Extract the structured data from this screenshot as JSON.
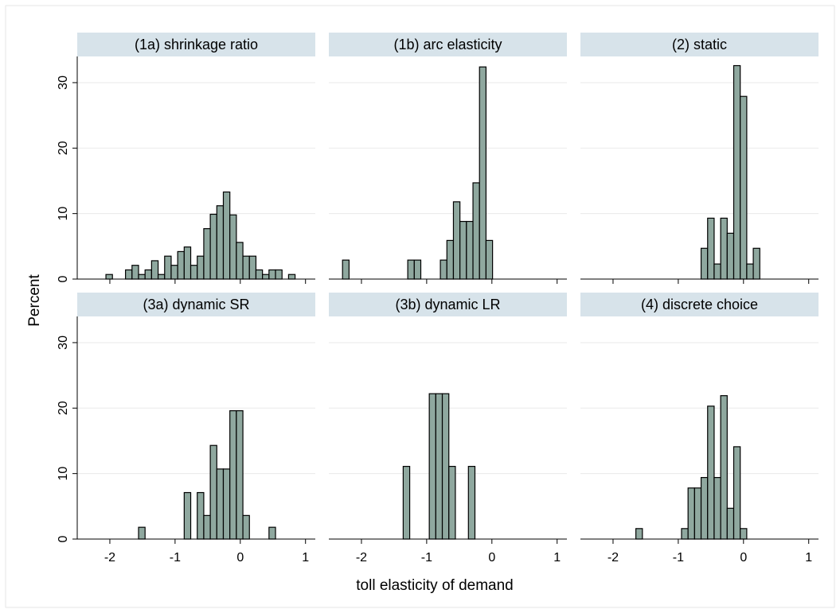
{
  "chart_data": {
    "type": "bar",
    "xlabel": "toll elasticity of demand",
    "ylabel": "Percent",
    "xlim": [
      -2.5,
      1.15
    ],
    "ylim": [
      0,
      34
    ],
    "xticks": [
      -2,
      -1,
      0,
      1
    ],
    "xtick_labels": [
      "-2",
      "-1",
      "0",
      "1"
    ],
    "yticks": [
      0,
      10,
      20,
      30
    ],
    "ytick_labels": [
      "0",
      "10",
      "20",
      "30"
    ],
    "panels": [
      {
        "title": "(1a) shrinkage ratio",
        "bin_width": 0.1,
        "bins": [
          {
            "x0": -2.06,
            "value": 0.7
          },
          {
            "x0": -1.76,
            "value": 1.4
          },
          {
            "x0": -1.66,
            "value": 2.1
          },
          {
            "x0": -1.56,
            "value": 0.7
          },
          {
            "x0": -1.46,
            "value": 1.4
          },
          {
            "x0": -1.36,
            "value": 2.8
          },
          {
            "x0": -1.26,
            "value": 0.7
          },
          {
            "x0": -1.16,
            "value": 3.5
          },
          {
            "x0": -1.06,
            "value": 2.1
          },
          {
            "x0": -0.96,
            "value": 4.2
          },
          {
            "x0": -0.86,
            "value": 4.9
          },
          {
            "x0": -0.76,
            "value": 2.1
          },
          {
            "x0": -0.66,
            "value": 3.5
          },
          {
            "x0": -0.56,
            "value": 7.7
          },
          {
            "x0": -0.46,
            "value": 9.9
          },
          {
            "x0": -0.36,
            "value": 11.2
          },
          {
            "x0": -0.26,
            "value": 13.3
          },
          {
            "x0": -0.16,
            "value": 9.8
          },
          {
            "x0": -0.06,
            "value": 5.6
          },
          {
            "x0": 0.04,
            "value": 3.5
          },
          {
            "x0": 0.14,
            "value": 3.5
          },
          {
            "x0": 0.24,
            "value": 1.4
          },
          {
            "x0": 0.34,
            "value": 0.7
          },
          {
            "x0": 0.44,
            "value": 1.4
          },
          {
            "x0": 0.54,
            "value": 1.4
          },
          {
            "x0": 0.74,
            "value": 0.7
          }
        ]
      },
      {
        "title": "(1b) arc elasticity",
        "bin_width": 0.1,
        "bins": [
          {
            "x0": -2.29,
            "value": 2.9
          },
          {
            "x0": -1.29,
            "value": 2.9
          },
          {
            "x0": -1.19,
            "value": 2.9
          },
          {
            "x0": -0.79,
            "value": 2.9
          },
          {
            "x0": -0.69,
            "value": 5.9
          },
          {
            "x0": -0.59,
            "value": 11.8
          },
          {
            "x0": -0.49,
            "value": 8.8
          },
          {
            "x0": -0.39,
            "value": 8.8
          },
          {
            "x0": -0.29,
            "value": 14.7
          },
          {
            "x0": -0.19,
            "value": 32.4
          },
          {
            "x0": -0.09,
            "value": 5.9
          }
        ]
      },
      {
        "title": "(2) static",
        "bin_width": 0.1,
        "bins": [
          {
            "x0": -0.65,
            "value": 4.7
          },
          {
            "x0": -0.55,
            "value": 9.3
          },
          {
            "x0": -0.45,
            "value": 2.3
          },
          {
            "x0": -0.35,
            "value": 9.3
          },
          {
            "x0": -0.25,
            "value": 7.0
          },
          {
            "x0": -0.15,
            "value": 32.6
          },
          {
            "x0": -0.05,
            "value": 27.9
          },
          {
            "x0": 0.05,
            "value": 2.3
          },
          {
            "x0": 0.15,
            "value": 4.7
          }
        ]
      },
      {
        "title": "(3a) dynamic SR",
        "bin_width": 0.1,
        "bins": [
          {
            "x0": -1.56,
            "value": 1.8
          },
          {
            "x0": -0.86,
            "value": 7.1
          },
          {
            "x0": -0.66,
            "value": 7.1
          },
          {
            "x0": -0.56,
            "value": 3.6
          },
          {
            "x0": -0.46,
            "value": 14.3
          },
          {
            "x0": -0.36,
            "value": 10.7
          },
          {
            "x0": -0.26,
            "value": 10.7
          },
          {
            "x0": -0.16,
            "value": 19.6
          },
          {
            "x0": -0.06,
            "value": 19.6
          },
          {
            "x0": 0.04,
            "value": 3.6
          },
          {
            "x0": 0.44,
            "value": 1.8
          }
        ]
      },
      {
        "title": "(3b) dynamic LR",
        "bin_width": 0.1,
        "bins": [
          {
            "x0": -1.36,
            "value": 11.1
          },
          {
            "x0": -0.96,
            "value": 22.2
          },
          {
            "x0": -0.86,
            "value": 22.2
          },
          {
            "x0": -0.76,
            "value": 22.2
          },
          {
            "x0": -0.66,
            "value": 11.1
          },
          {
            "x0": -0.36,
            "value": 11.1
          }
        ]
      },
      {
        "title": "(4) discrete choice",
        "bin_width": 0.1,
        "bins": [
          {
            "x0": -1.65,
            "value": 1.6
          },
          {
            "x0": -0.95,
            "value": 1.6
          },
          {
            "x0": -0.85,
            "value": 7.8
          },
          {
            "x0": -0.75,
            "value": 7.8
          },
          {
            "x0": -0.65,
            "value": 9.4
          },
          {
            "x0": -0.55,
            "value": 20.3
          },
          {
            "x0": -0.45,
            "value": 9.4
          },
          {
            "x0": -0.35,
            "value": 21.9
          },
          {
            "x0": -0.25,
            "value": 4.7
          },
          {
            "x0": -0.15,
            "value": 14.1
          },
          {
            "x0": -0.05,
            "value": 1.6
          }
        ]
      }
    ]
  }
}
